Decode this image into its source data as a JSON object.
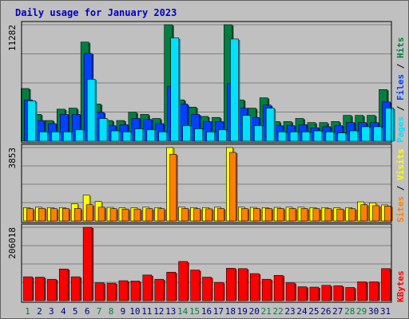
{
  "title": "Daily usage for January 2023",
  "colors": {
    "hits": "#008040",
    "files": "#0040ff",
    "pages": "#00e0ff",
    "visits": "#ffff00",
    "sites": "#ff8000",
    "kbytes": "#ff0000",
    "weekend_day": "#008040",
    "weekday_day": "#000080"
  },
  "chart_data": [
    {
      "type": "bar",
      "panel": "top",
      "max_label": "11282",
      "ylim": [
        0,
        11282
      ],
      "axis_label_parts": [
        "Pages",
        " / ",
        "Files",
        " / ",
        "Hits"
      ],
      "categories": [
        "1",
        "2",
        "3",
        "4",
        "5",
        "6",
        "7",
        "8",
        "9",
        "10",
        "11",
        "12",
        "13",
        "14",
        "15",
        "16",
        "17",
        "18",
        "19",
        "20",
        "21",
        "22",
        "23",
        "24",
        "25",
        "26",
        "27",
        "28",
        "29",
        "30",
        "31"
      ],
      "series": [
        {
          "name": "Hits",
          "values": [
            5100,
            2600,
            2000,
            3100,
            3200,
            9600,
            3600,
            2000,
            2000,
            2800,
            2600,
            2200,
            11282,
            4000,
            3300,
            2400,
            2300,
            11282,
            4000,
            3200,
            4200,
            1900,
            1900,
            2200,
            1800,
            1800,
            1900,
            2500,
            2500,
            2500,
            5000
          ]
        },
        {
          "name": "Files",
          "values": [
            4000,
            2000,
            1700,
            2600,
            2600,
            8500,
            2800,
            1500,
            1600,
            2200,
            2100,
            1700,
            5300,
            3600,
            2600,
            1900,
            1900,
            5600,
            3200,
            2300,
            3500,
            1500,
            1500,
            1600,
            1300,
            1400,
            1500,
            1800,
            1800,
            1800,
            3800
          ]
        },
        {
          "name": "Pages",
          "values": [
            3900,
            900,
            900,
            900,
            1100,
            6000,
            2200,
            1000,
            900,
            1200,
            1100,
            900,
            10000,
            1500,
            1200,
            900,
            1100,
            9900,
            2500,
            1500,
            3200,
            900,
            900,
            900,
            1000,
            900,
            800,
            1000,
            1400,
            1400,
            3200
          ]
        }
      ]
    },
    {
      "type": "bar",
      "panel": "middle",
      "max_label": "3853",
      "ylim": [
        0,
        3853
      ],
      "axis_label_parts": [
        "Sites",
        " / ",
        "Visits"
      ],
      "categories": [
        "1",
        "2",
        "3",
        "4",
        "5",
        "6",
        "7",
        "8",
        "9",
        "10",
        "11",
        "12",
        "13",
        "14",
        "15",
        "16",
        "17",
        "18",
        "19",
        "20",
        "21",
        "22",
        "23",
        "24",
        "25",
        "26",
        "27",
        "28",
        "29",
        "30",
        "31"
      ],
      "series": [
        {
          "name": "Visits",
          "values": [
            700,
            720,
            700,
            700,
            900,
            1350,
            1020,
            710,
            690,
            690,
            720,
            700,
            3853,
            720,
            700,
            700,
            720,
            3853,
            720,
            710,
            700,
            710,
            720,
            720,
            700,
            700,
            690,
            700,
            1000,
            950,
            840
          ]
        },
        {
          "name": "Sites",
          "values": [
            640,
            660,
            640,
            650,
            650,
            850,
            720,
            640,
            620,
            620,
            640,
            640,
            3500,
            650,
            640,
            630,
            650,
            3600,
            650,
            650,
            650,
            650,
            650,
            650,
            640,
            640,
            620,
            640,
            850,
            800,
            780
          ]
        }
      ]
    },
    {
      "type": "bar",
      "panel": "bottom",
      "max_label": "206018",
      "ylim": [
        0,
        206018
      ],
      "axis_label_parts": [
        "KBytes"
      ],
      "categories": [
        "1",
        "2",
        "3",
        "4",
        "5",
        "6",
        "7",
        "8",
        "9",
        "10",
        "11",
        "12",
        "13",
        "14",
        "15",
        "16",
        "17",
        "18",
        "19",
        "20",
        "21",
        "22",
        "23",
        "24",
        "25",
        "26",
        "27",
        "28",
        "29",
        "30",
        "31"
      ],
      "series": [
        {
          "name": "KBytes",
          "values": [
            67000,
            66000,
            60000,
            89000,
            67000,
            206018,
            50000,
            49000,
            56000,
            55000,
            72000,
            60000,
            80000,
            110000,
            86000,
            66000,
            51000,
            91000,
            90000,
            76000,
            60000,
            71000,
            50000,
            39000,
            38000,
            43000,
            42000,
            37000,
            53000,
            53000,
            90000
          ]
        }
      ]
    }
  ],
  "days": [
    {
      "label": "1",
      "weekend": true
    },
    {
      "label": "2",
      "weekend": false
    },
    {
      "label": "3",
      "weekend": false
    },
    {
      "label": "4",
      "weekend": false
    },
    {
      "label": "5",
      "weekend": false
    },
    {
      "label": "6",
      "weekend": false
    },
    {
      "label": "7",
      "weekend": true
    },
    {
      "label": "8",
      "weekend": true
    },
    {
      "label": "9",
      "weekend": false
    },
    {
      "label": "10",
      "weekend": false
    },
    {
      "label": "11",
      "weekend": false
    },
    {
      "label": "12",
      "weekend": false
    },
    {
      "label": "13",
      "weekend": false
    },
    {
      "label": "14",
      "weekend": true
    },
    {
      "label": "15",
      "weekend": true
    },
    {
      "label": "16",
      "weekend": false
    },
    {
      "label": "17",
      "weekend": false
    },
    {
      "label": "18",
      "weekend": false
    },
    {
      "label": "19",
      "weekend": false
    },
    {
      "label": "20",
      "weekend": false
    },
    {
      "label": "21",
      "weekend": true
    },
    {
      "label": "22",
      "weekend": true
    },
    {
      "label": "23",
      "weekend": false
    },
    {
      "label": "24",
      "weekend": false
    },
    {
      "label": "25",
      "weekend": false
    },
    {
      "label": "26",
      "weekend": false
    },
    {
      "label": "27",
      "weekend": false
    },
    {
      "label": "28",
      "weekend": true
    },
    {
      "label": "29",
      "weekend": true
    },
    {
      "label": "30",
      "weekend": false
    },
    {
      "label": "31",
      "weekend": false
    }
  ]
}
